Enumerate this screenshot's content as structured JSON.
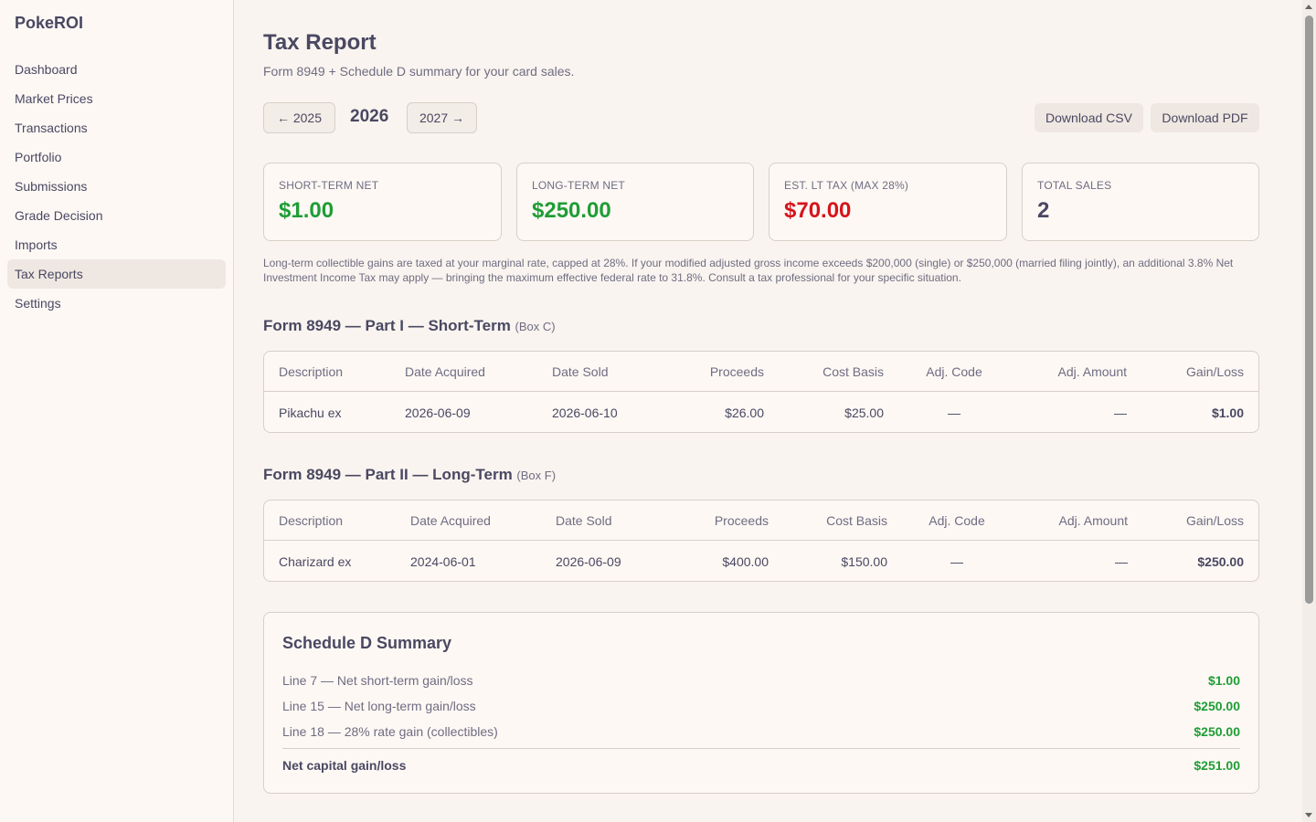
{
  "app": {
    "brand": "PokeROI"
  },
  "sidebar": {
    "items": [
      {
        "label": "Dashboard"
      },
      {
        "label": "Market Prices"
      },
      {
        "label": "Transactions"
      },
      {
        "label": "Portfolio"
      },
      {
        "label": "Submissions"
      },
      {
        "label": "Grade Decision"
      },
      {
        "label": "Imports"
      },
      {
        "label": "Tax Reports",
        "active": true
      },
      {
        "label": "Settings"
      }
    ]
  },
  "page": {
    "title": "Tax Report",
    "subtitle": "Form 8949 + Schedule D summary for your card sales."
  },
  "year_nav": {
    "prev_label": "← 2025",
    "current": "2026",
    "next_label": "2027 →"
  },
  "downloads": {
    "csv_label": "Download CSV",
    "pdf_label": "Download PDF"
  },
  "cards": [
    {
      "label": "Short-Term Net",
      "value": "$1.00",
      "color": "#1f9d35"
    },
    {
      "label": "Long-Term Net",
      "value": "$250.00",
      "color": "#1f9d35"
    },
    {
      "label": "Est. LT Tax (max 28%)",
      "value": "$70.00",
      "color": "#d6141b"
    },
    {
      "label": "Total Sales",
      "value": "2",
      "color": "#4a4862"
    }
  ],
  "disclaimer": "Long-term collectible gains are taxed at your marginal rate, capped at 28%. If your modified adjusted gross income exceeds $200,000 (single) or $250,000 (married filing jointly), an additional 3.8% Net Investment Income Tax may apply — bringing the maximum effective federal rate to 31.8%. Consult a tax professional for your specific situation.",
  "columns": [
    "Description",
    "Date Acquired",
    "Date Sold",
    "Proceeds",
    "Cost Basis",
    "Adj. Code",
    "Adj. Amount",
    "Gain/Loss"
  ],
  "short_term": {
    "title": "Form 8949 — Part I — Short-Term",
    "box": "(Box C)",
    "rows": [
      {
        "description": "Pikachu ex",
        "date_acquired": "2026-06-09",
        "date_sold": "2026-06-10",
        "proceeds": "$26.00",
        "cost_basis": "$25.00",
        "adj_code": "—",
        "adj_amount": "—",
        "gain_loss": "$1.00"
      }
    ]
  },
  "long_term": {
    "title": "Form 8949 — Part II — Long-Term",
    "box": "(Box F)",
    "rows": [
      {
        "description": "Charizard ex",
        "date_acquired": "2024-06-01",
        "date_sold": "2026-06-09",
        "proceeds": "$400.00",
        "cost_basis": "$150.00",
        "adj_code": "—",
        "adj_amount": "—",
        "gain_loss": "$250.00"
      }
    ]
  },
  "schedule_d": {
    "title": "Schedule D Summary",
    "lines": [
      {
        "label": "Line 7 — Net short-term gain/loss",
        "value": "$1.00"
      },
      {
        "label": "Line 15 — Net long-term gain/loss",
        "value": "$250.00"
      },
      {
        "label": "Line 18 — 28% rate gain (collectibles)",
        "value": "$250.00"
      }
    ],
    "total_label": "Net capital gain/loss",
    "total_value": "$251.00"
  },
  "colors": {
    "gain": "#1f9d35",
    "loss": "#d6141b",
    "text": "#4a4862",
    "background": "#f9f4ef"
  }
}
